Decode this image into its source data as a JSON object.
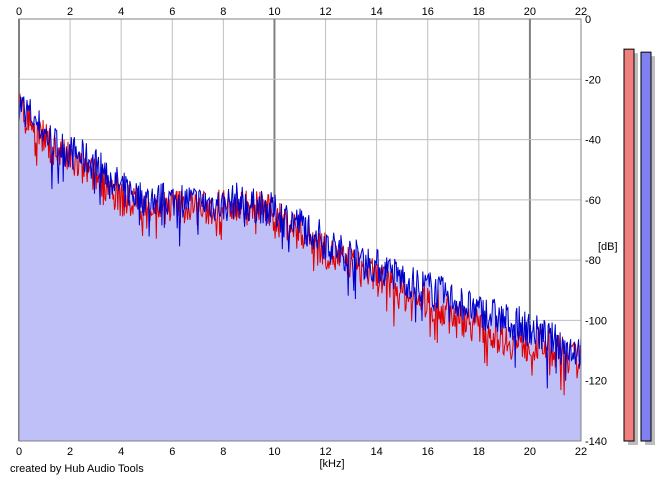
{
  "credit": "created by Hub Audio Tools",
  "chart_data": {
    "type": "area",
    "title": "",
    "xlabel": "[kHz]",
    "ylabel": "[dB]",
    "xlim": [
      0,
      22
    ],
    "ylim": [
      -140,
      0
    ],
    "xticks": [
      0,
      2,
      4,
      6,
      8,
      10,
      12,
      14,
      16,
      18,
      20,
      22
    ],
    "yticks": [
      0,
      -20,
      -40,
      -60,
      -80,
      -100,
      -120,
      -140
    ],
    "grid": true,
    "colors": {
      "fill": "#c0c0f8",
      "blue_line": "#0000cc",
      "red_line": "#e00000",
      "grid": "#c0c0c0",
      "major_grid": "#808080",
      "meter_left": "#f08080",
      "meter_right": "#8080f0"
    },
    "series": [
      {
        "color": "#0000cc",
        "x": [
          0,
          0.5,
          1,
          1.5,
          2,
          2.5,
          3,
          3.5,
          4,
          4.5,
          5,
          5.5,
          6,
          6.5,
          7,
          7.5,
          8,
          8.5,
          9,
          9.5,
          10,
          10.5,
          11,
          11.5,
          12,
          12.5,
          13,
          13.5,
          14,
          14.5,
          15,
          15.5,
          16,
          16.5,
          17,
          17.5,
          18,
          18.5,
          19,
          19.5,
          20,
          20.5,
          21,
          21.5,
          22
        ],
        "y": [
          -28,
          -32,
          -38,
          -42,
          -44,
          -46,
          -48,
          -52,
          -56,
          -58,
          -60,
          -60,
          -60,
          -60,
          -61,
          -61,
          -62,
          -60,
          -62,
          -62,
          -64,
          -66,
          -68,
          -70,
          -74,
          -77,
          -78,
          -80,
          -82,
          -84,
          -86,
          -88,
          -89,
          -91,
          -93,
          -95,
          -97,
          -98,
          -100,
          -101,
          -103,
          -105,
          -107,
          -109,
          -110
        ]
      },
      {
        "color": "#e00000",
        "x": [
          0,
          0.5,
          1,
          1.5,
          2,
          2.5,
          3,
          3.5,
          4,
          4.5,
          5,
          5.5,
          6,
          6.5,
          7,
          7.5,
          8,
          8.5,
          9,
          9.5,
          10,
          10.5,
          11,
          11.5,
          12,
          12.5,
          13,
          13.5,
          14,
          14.5,
          15,
          15.5,
          16,
          16.5,
          17,
          17.5,
          18,
          18.5,
          19,
          19.5,
          20,
          20.5,
          21,
          21.5,
          22
        ],
        "y": [
          -30,
          -34,
          -40,
          -44,
          -47,
          -50,
          -52,
          -55,
          -60,
          -61,
          -62,
          -62,
          -62,
          -62,
          -63,
          -63,
          -62,
          -61,
          -63,
          -62,
          -66,
          -68,
          -70,
          -73,
          -77,
          -80,
          -81,
          -84,
          -86,
          -88,
          -91,
          -93,
          -94,
          -96,
          -98,
          -100,
          -102,
          -104,
          -106,
          -108,
          -108,
          -108,
          -110,
          -112,
          -114
        ]
      }
    ],
    "meters": {
      "left_level": -10,
      "right_level": -11
    }
  }
}
